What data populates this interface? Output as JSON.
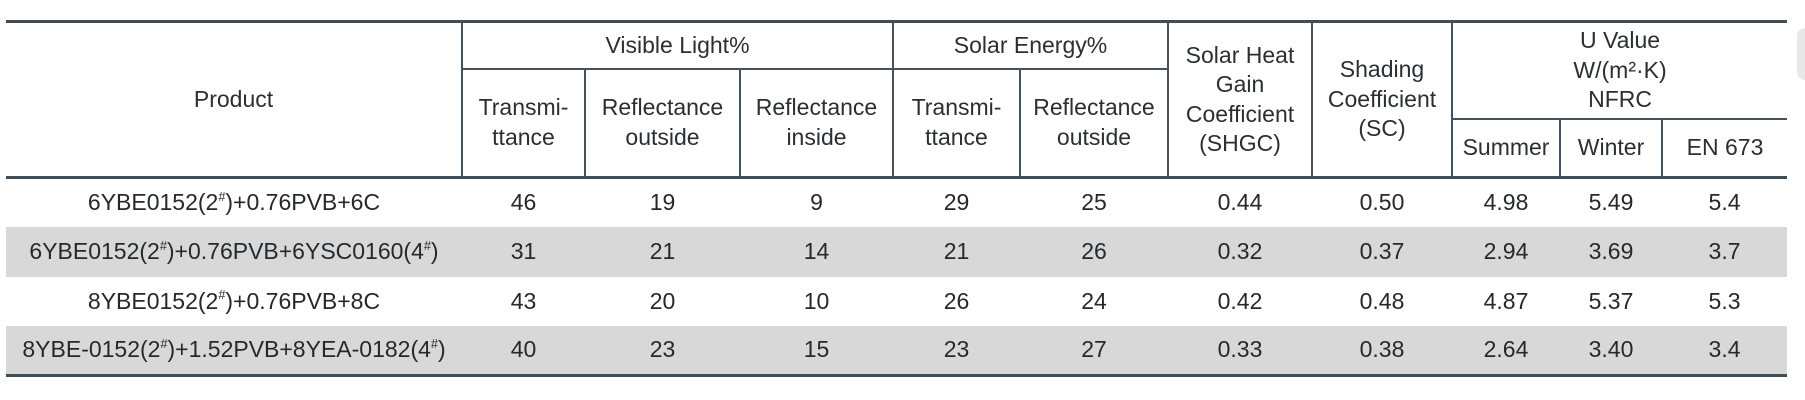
{
  "table": {
    "header": {
      "product": "Product",
      "visible_light_group": "Visible Light%",
      "solar_energy_group": "Solar Energy%",
      "vl_transmittance": "Transmi-\nttance",
      "vl_reflectance_outside": "Reflectance\noutside",
      "vl_reflectance_inside": "Reflectance\ninside",
      "se_transmittance": "Transmi-\nttance",
      "se_reflectance_outside": "Reflectance\noutside",
      "shgc": "Solar Heat\nGain\nCoefficient\n(SHGC)",
      "shading_coefficient": "Shading\nCoefficient\n(SC)",
      "u_value_group": "U Value\nW/(m²·K)\nNFRC",
      "summer": "Summer",
      "winter": "Winter",
      "en673": "EN 673"
    },
    "rows": [
      {
        "product": "6YBE0152(2#)+0.76PVB+6C",
        "values": [
          "46",
          "19",
          "9",
          "29",
          "25",
          "0.44",
          "0.50",
          "4.98",
          "5.49",
          "5.4"
        ]
      },
      {
        "product": "6YBE0152(2#)+0.76PVB+6YSC0160(4#)",
        "values": [
          "31",
          "21",
          "14",
          "21",
          "26",
          "0.32",
          "0.37",
          "2.94",
          "3.69",
          "3.7"
        ]
      },
      {
        "product": "8YBE0152(2#)+0.76PVB+8C",
        "values": [
          "43",
          "20",
          "10",
          "26",
          "24",
          "0.42",
          "0.48",
          "4.87",
          "5.37",
          "5.3"
        ]
      },
      {
        "product": "8YBE-0152(2#)+1.52PVB+8YEA-0182(4#)",
        "values": [
          "40",
          "23",
          "15",
          "23",
          "27",
          "0.33",
          "0.38",
          "2.64",
          "3.40",
          "3.4"
        ]
      }
    ]
  },
  "colors": {
    "rule_heavy": "#404e5a",
    "rule_light": "#44525e",
    "row_alt_background": "#d8d8d8",
    "text": "#2a2f33"
  }
}
